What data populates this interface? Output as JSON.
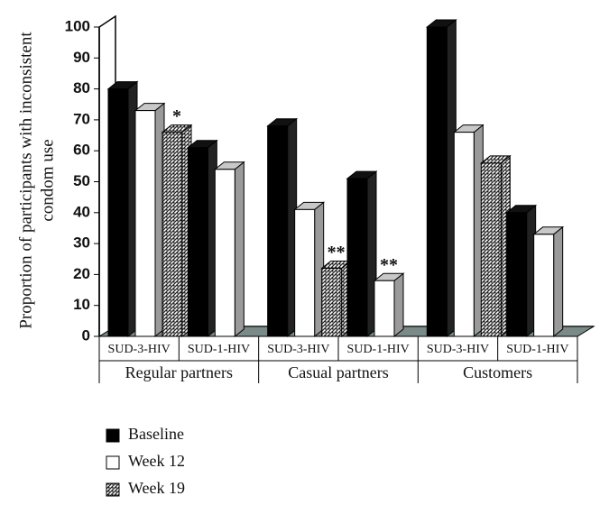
{
  "chart_data": {
    "type": "bar3d",
    "ylabel": [
      "Proportion of participants with inconsistent",
      "condom use"
    ],
    "groups": [
      "Regular partners",
      "Casual partners",
      "Customers"
    ],
    "categories": [
      "SUD-3-HIV",
      "SUD-1-HIV",
      "SUD-3-HIV",
      "SUD-1-HIV",
      "SUD-3-HIV",
      "SUD-1-HIV"
    ],
    "series": [
      {
        "name": "Baseline",
        "color": "#000000",
        "values": [
          80,
          61,
          68,
          51,
          100,
          40
        ],
        "annotations": [
          null,
          null,
          null,
          null,
          null,
          null
        ]
      },
      {
        "name": "Week 12",
        "color": "#ffffff",
        "values": [
          73,
          54,
          41,
          18,
          66,
          33
        ],
        "annotations": [
          null,
          null,
          null,
          "**",
          null,
          null
        ]
      },
      {
        "name": "Week 19",
        "color": "pattern",
        "values": [
          66,
          null,
          22,
          null,
          56,
          null
        ],
        "annotations": [
          "*",
          null,
          "**",
          null,
          null,
          null
        ]
      }
    ],
    "ylim": [
      0,
      100
    ],
    "yticks": [
      0,
      10,
      20,
      30,
      40,
      50,
      60,
      70,
      80,
      90,
      100
    ]
  }
}
